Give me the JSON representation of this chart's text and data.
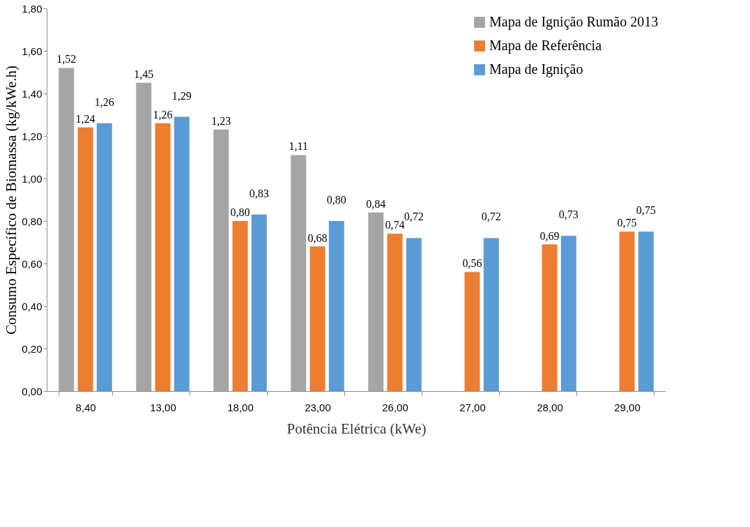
{
  "chart_data": {
    "type": "bar",
    "xlabel": "Potência Elétrica (kWe)",
    "ylabel": "Consumo Específico de Biomassa (kg/kWe.h)",
    "categories": [
      "8,40",
      "13,00",
      "18,00",
      "23,00",
      "26,00",
      "27,00",
      "28,00",
      "29,00"
    ],
    "series": [
      {
        "name": "Mapa de Ignição Rumão 2013",
        "color": "#a5a5a5",
        "values": [
          1.52,
          1.45,
          1.23,
          1.11,
          0.84,
          null,
          null,
          null
        ],
        "value_labels": [
          "1,52",
          "1,45",
          "1,23",
          "1,11",
          "0,84",
          null,
          null,
          null
        ]
      },
      {
        "name": "Mapa de Referência",
        "color": "#ed7d31",
        "values": [
          1.24,
          1.26,
          0.8,
          0.68,
          0.74,
          0.56,
          0.69,
          0.75
        ],
        "value_labels": [
          "1,24",
          "1,26",
          "0,80",
          "0,68",
          "0,74",
          "0,56",
          "0,69",
          "0,75"
        ]
      },
      {
        "name": "Mapa de Ignição",
        "color": "#5b9bd5",
        "values": [
          1.26,
          1.29,
          0.83,
          0.8,
          0.72,
          0.72,
          0.73,
          0.75
        ],
        "value_labels": [
          "1,26",
          "1,29",
          "0,83",
          "0,80",
          "0,72",
          "0,72",
          "0,73",
          "0,75"
        ]
      }
    ],
    "ylim": [
      0,
      1.8
    ],
    "yticks": [
      {
        "value": 0,
        "label": "0,00"
      },
      {
        "value": 0.2,
        "label": "0,20"
      },
      {
        "value": 0.4,
        "label": "0,40"
      },
      {
        "value": 0.6,
        "label": "0,60"
      },
      {
        "value": 0.8,
        "label": "0,80"
      },
      {
        "value": 1.0,
        "label": "1,00"
      },
      {
        "value": 1.2,
        "label": "1,20"
      },
      {
        "value": 1.4,
        "label": "1,40"
      },
      {
        "value": 1.6,
        "label": "1,60"
      },
      {
        "value": 1.8,
        "label": "1,80"
      }
    ],
    "grid": false,
    "legend": "top right"
  }
}
